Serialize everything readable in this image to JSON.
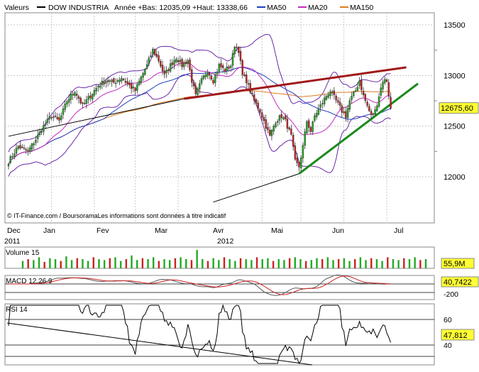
{
  "header": {
    "valeurs_label": "Valeurs",
    "series_name": "DOW INDUSTRIA",
    "range_text": "Année +Bas: 12035,09 +Haut: 13338,66",
    "ma_labels": [
      {
        "name": "MA50",
        "color": "#1f3fbf"
      },
      {
        "name": "MA20",
        "color": "#c02bc0"
      },
      {
        "name": "MA150",
        "color": "#e07a20"
      }
    ]
  },
  "credit": "© IT-Finance.com / BoursoramaLes informations sont données à titre indicatif",
  "colors": {
    "up_candle": "#22aa22",
    "down_candle": "#cc2222",
    "resistance": "#a01818",
    "support": "#1a8a1a",
    "grid": "#c8c8c8",
    "label_bg": "#ffff33",
    "bollinger": "#6a28a8",
    "trend_black": "#000000",
    "rsi_line": "#000000",
    "macd_line": "#555555",
    "macd_signal": "#cc2222"
  },
  "chart_data": [
    {
      "type": "candlestick",
      "title": "DOW INDUSTRIA",
      "x_tick_labels": [
        "Dec",
        "Jan",
        "Fev",
        "Mar",
        "Avr",
        "Mai",
        "Jun",
        "Jul"
      ],
      "year_labels": [
        "2011",
        "2012"
      ],
      "y_ticks": [
        12000,
        12500,
        13000,
        13500
      ],
      "ylim": [
        11750,
        13700
      ],
      "last_value_label": "12675,60",
      "anchors": [
        {
          "d": 0,
          "c": 12150
        },
        {
          "d": 5,
          "c": 12300
        },
        {
          "d": 10,
          "c": 12250
        },
        {
          "d": 15,
          "c": 12400
        },
        {
          "d": 18,
          "c": 12500
        },
        {
          "d": 22,
          "c": 12600
        },
        {
          "d": 26,
          "c": 12550
        },
        {
          "d": 30,
          "c": 12750
        },
        {
          "d": 34,
          "c": 12850
        },
        {
          "d": 38,
          "c": 12700
        },
        {
          "d": 42,
          "c": 12800
        },
        {
          "d": 46,
          "c": 12900
        },
        {
          "d": 50,
          "c": 12950
        },
        {
          "d": 54,
          "c": 12930
        },
        {
          "d": 58,
          "c": 12980
        },
        {
          "d": 62,
          "c": 12900
        },
        {
          "d": 65,
          "c": 12850
        },
        {
          "d": 68,
          "c": 12980
        },
        {
          "d": 71,
          "c": 13100
        },
        {
          "d": 74,
          "c": 13250
        },
        {
          "d": 77,
          "c": 13150
        },
        {
          "d": 80,
          "c": 13000
        },
        {
          "d": 83,
          "c": 13100
        },
        {
          "d": 86,
          "c": 13180
        },
        {
          "d": 89,
          "c": 13100
        },
        {
          "d": 92,
          "c": 13150
        },
        {
          "d": 94,
          "c": 12950
        },
        {
          "d": 96,
          "c": 12800
        },
        {
          "d": 99,
          "c": 12950
        },
        {
          "d": 102,
          "c": 13050
        },
        {
          "d": 105,
          "c": 12950
        },
        {
          "d": 108,
          "c": 13100
        },
        {
          "d": 111,
          "c": 13050
        },
        {
          "d": 114,
          "c": 13100
        },
        {
          "d": 116,
          "c": 13300
        },
        {
          "d": 118,
          "c": 13250
        },
        {
          "d": 120,
          "c": 13000
        },
        {
          "d": 122,
          "c": 12950
        },
        {
          "d": 124,
          "c": 12850
        },
        {
          "d": 126,
          "c": 12750
        },
        {
          "d": 129,
          "c": 12650
        },
        {
          "d": 132,
          "c": 12500
        },
        {
          "d": 134,
          "c": 12400
        },
        {
          "d": 137,
          "c": 12550
        },
        {
          "d": 140,
          "c": 12600
        },
        {
          "d": 142,
          "c": 12550
        },
        {
          "d": 145,
          "c": 12400
        },
        {
          "d": 147,
          "c": 12150
        },
        {
          "d": 149,
          "c": 12100
        },
        {
          "d": 151,
          "c": 12300
        },
        {
          "d": 153,
          "c": 12550
        },
        {
          "d": 155,
          "c": 12450
        },
        {
          "d": 157,
          "c": 12600
        },
        {
          "d": 160,
          "c": 12700
        },
        {
          "d": 163,
          "c": 12800
        },
        {
          "d": 165,
          "c": 12850
        },
        {
          "d": 168,
          "c": 12750
        },
        {
          "d": 171,
          "c": 12650
        },
        {
          "d": 173,
          "c": 12600
        },
        {
          "d": 175,
          "c": 12750
        },
        {
          "d": 178,
          "c": 12850
        },
        {
          "d": 180,
          "c": 12950
        },
        {
          "d": 182,
          "c": 12800
        },
        {
          "d": 184,
          "c": 12700
        },
        {
          "d": 186,
          "c": 12600
        },
        {
          "d": 188,
          "c": 12650
        },
        {
          "d": 190,
          "c": 12800
        },
        {
          "d": 192,
          "c": 12950
        },
        {
          "d": 194,
          "c": 12950
        },
        {
          "d": 196,
          "c": 12675.6
        }
      ],
      "moving_averages": [
        {
          "name": "MA150",
          "window": 150
        },
        {
          "name": "MA50",
          "window": 50
        },
        {
          "name": "MA20",
          "window": 20
        }
      ],
      "trendlines": [
        {
          "role": "resistance",
          "points": [
            [
              90,
              12770
            ],
            [
              204,
              13080
            ]
          ]
        },
        {
          "role": "support",
          "points": [
            [
              149,
              12030
            ],
            [
              210,
              12920
            ]
          ]
        },
        {
          "role": "long-term",
          "points": [
            [
              0,
              12400
            ],
            [
              90,
              12770
            ]
          ]
        },
        {
          "role": "long-term-rising",
          "points": [
            [
              105,
              11750
            ],
            [
              149,
              12030
            ]
          ]
        }
      ]
    },
    {
      "type": "bar",
      "title": "Volume 15",
      "last_value_label": "55,9M",
      "values": [
        40,
        50,
        45,
        60,
        35,
        55,
        50,
        40,
        65,
        45,
        55,
        50,
        40,
        60,
        50,
        45,
        55,
        60,
        40,
        50,
        70,
        45,
        55,
        50,
        60,
        40,
        50,
        45,
        55,
        60,
        50,
        45,
        100,
        50,
        40,
        55,
        45,
        60,
        50,
        40,
        55,
        50,
        45,
        60,
        50,
        55,
        40,
        50,
        45,
        55,
        60,
        50,
        40,
        45,
        55,
        50,
        60,
        45,
        50,
        55,
        40,
        50,
        60,
        45,
        55,
        50,
        40,
        60,
        50,
        45,
        55,
        50,
        60,
        45,
        50
      ]
    },
    {
      "type": "line",
      "title": "MACD 12 26 9",
      "last_value_label": "40,7422",
      "y_ticks": [
        -200
      ],
      "ylim": [
        -250,
        150
      ]
    },
    {
      "type": "line",
      "title": "RSI 14",
      "last_value_label": "47,812",
      "y_ticks": [
        40,
        60
      ],
      "ylim": [
        20,
        90
      ]
    }
  ]
}
